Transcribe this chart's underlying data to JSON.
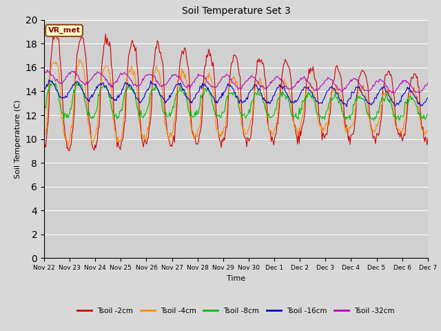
{
  "title": "Soil Temperature Set 3",
  "xlabel": "Time",
  "ylabel": "Soil Temperature (C)",
  "ylim": [
    0,
    20
  ],
  "yticks": [
    0,
    2,
    4,
    6,
    8,
    10,
    12,
    14,
    16,
    18,
    20
  ],
  "fig_facecolor": "#d8d8d8",
  "plot_facecolor": "#d0d0d0",
  "annotation_text": "VR_met",
  "line_colors": {
    "Tsoil -2cm": "#cc0000",
    "Tsoil -4cm": "#ff8800",
    "Tsoil -8cm": "#00bb00",
    "Tsoil -16cm": "#0000cc",
    "Tsoil -32cm": "#bb00bb"
  },
  "linewidth": 0.8,
  "n_points": 500,
  "tick_labels": [
    "Nov 22",
    "Nov 23",
    "Nov 24",
    "Nov 25",
    "Nov 26",
    "Nov 27",
    "Nov 28",
    "Nov 29",
    "Nov 30",
    "Dec 1",
    "Dec 2",
    "Dec 3",
    "Dec 4",
    "Dec 5",
    "Dec 6",
    "Dec 7"
  ]
}
